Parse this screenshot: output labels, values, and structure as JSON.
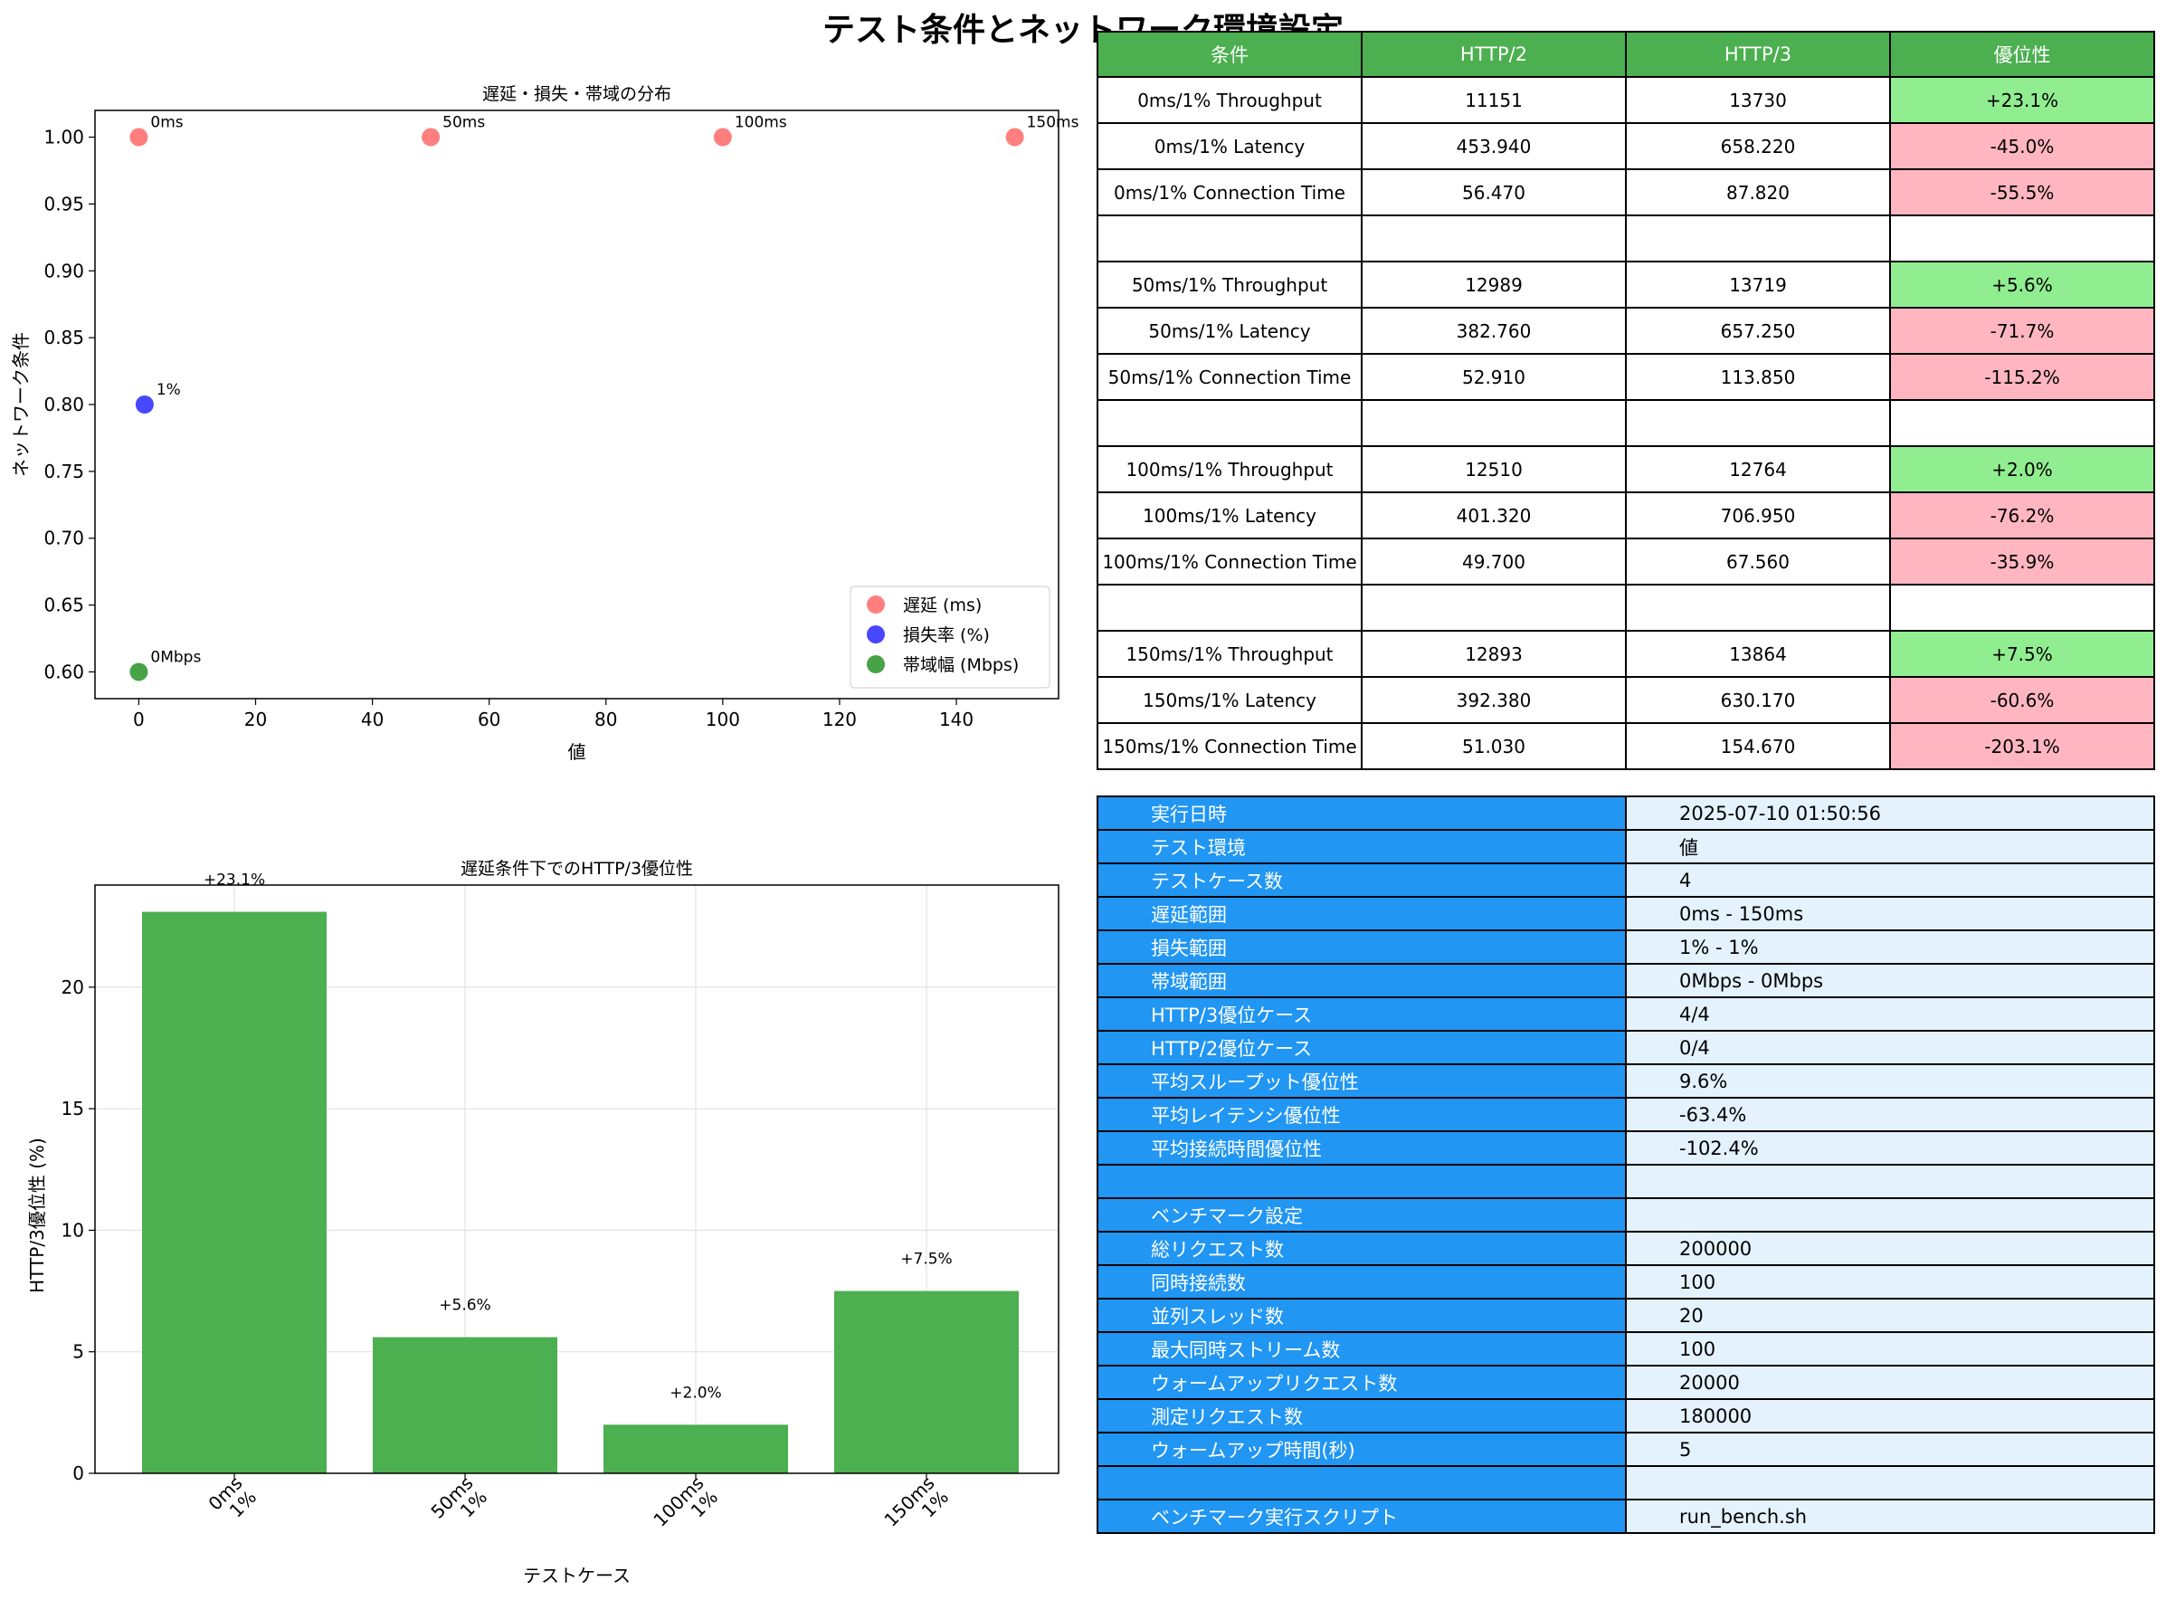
{
  "page_title": "テスト条件とネットワーク環境設定",
  "chart_data": [
    {
      "type": "scatter",
      "title": "遅延・損失・帯域の分布",
      "xlabel": "値",
      "ylabel": "ネットワーク条件",
      "xlim": [
        -7.5,
        157.5
      ],
      "ylim": [
        0.58,
        1.02
      ],
      "xticks": [
        0,
        20,
        40,
        60,
        80,
        100,
        120,
        140
      ],
      "yticks": [
        0.6,
        0.65,
        0.7,
        0.75,
        0.8,
        0.85,
        0.9,
        0.95,
        1.0
      ],
      "legend_position": "lower-right",
      "series": [
        {
          "name": "遅延 (ms)",
          "color": "#ff4d4d",
          "points": [
            {
              "x": 0,
              "y": 1.0,
              "label": "0ms"
            },
            {
              "x": 50,
              "y": 1.0,
              "label": "50ms"
            },
            {
              "x": 100,
              "y": 1.0,
              "label": "100ms"
            },
            {
              "x": 150,
              "y": 1.0,
              "label": "150ms"
            }
          ]
        },
        {
          "name": "損失率 (%)",
          "color": "#0000ff",
          "points": [
            {
              "x": 1,
              "y": 0.8,
              "label": "1%"
            }
          ]
        },
        {
          "name": "帯域幅 (Mbps)",
          "color": "#008000",
          "points": [
            {
              "x": 0,
              "y": 0.6,
              "label": "0Mbps"
            }
          ]
        }
      ]
    },
    {
      "type": "bar",
      "title": "遅延条件下でのHTTP/3優位性",
      "xlabel": "テストケース",
      "ylabel": "HTTP/3優位性 (%)",
      "ylim": [
        0,
        24.2
      ],
      "yticks": [
        0,
        5,
        10,
        15,
        20
      ],
      "grid": true,
      "color": "#4caf50",
      "categories": [
        [
          "0ms",
          "1%"
        ],
        [
          "50ms",
          "1%"
        ],
        [
          "100ms",
          "1%"
        ],
        [
          "150ms",
          "1%"
        ]
      ],
      "values": [
        23.1,
        5.6,
        2.0,
        7.5
      ],
      "labels": [
        "+23.1%",
        "+5.6%",
        "+2.0%",
        "+7.5%"
      ]
    }
  ],
  "results_table": {
    "headers": [
      "条件",
      "HTTP/2",
      "HTTP/3",
      "優位性"
    ],
    "rows": [
      [
        "0ms/1% Throughput",
        "11151",
        "13730",
        "+23.1%"
      ],
      [
        "0ms/1% Latency",
        "453.940",
        "658.220",
        "-45.0%"
      ],
      [
        "0ms/1% Connection Time",
        "56.470",
        "87.820",
        "-55.5%"
      ],
      [
        "",
        "",
        "",
        ""
      ],
      [
        "50ms/1% Throughput",
        "12989",
        "13719",
        "+5.6%"
      ],
      [
        "50ms/1% Latency",
        "382.760",
        "657.250",
        "-71.7%"
      ],
      [
        "50ms/1% Connection Time",
        "52.910",
        "113.850",
        "-115.2%"
      ],
      [
        "",
        "",
        "",
        ""
      ],
      [
        "100ms/1% Throughput",
        "12510",
        "12764",
        "+2.0%"
      ],
      [
        "100ms/1% Latency",
        "401.320",
        "706.950",
        "-76.2%"
      ],
      [
        "100ms/1% Connection Time",
        "49.700",
        "67.560",
        "-35.9%"
      ],
      [
        "",
        "",
        "",
        ""
      ],
      [
        "150ms/1% Throughput",
        "12893",
        "13864",
        "+7.5%"
      ],
      [
        "150ms/1% Latency",
        "392.380",
        "630.170",
        "-60.6%"
      ],
      [
        "150ms/1% Connection Time",
        "51.030",
        "154.670",
        "-203.1%"
      ]
    ],
    "colors": {
      "positive": "#90ee90",
      "negative": "#ffb6c1",
      "header": "#4caf50"
    }
  },
  "info_table": {
    "rows": [
      [
        "実行日時",
        "2025-07-10 01:50:56"
      ],
      [
        "テスト環境",
        "値"
      ],
      [
        "テストケース数",
        "4"
      ],
      [
        "遅延範囲",
        "0ms - 150ms"
      ],
      [
        "損失範囲",
        "1% - 1%"
      ],
      [
        "帯域範囲",
        "0Mbps - 0Mbps"
      ],
      [
        "HTTP/3優位ケース",
        "4/4"
      ],
      [
        "HTTP/2優位ケース",
        "0/4"
      ],
      [
        "平均スループット優位性",
        "9.6%"
      ],
      [
        "平均レイテンシ優位性",
        "-63.4%"
      ],
      [
        "平均接続時間優位性",
        "-102.4%"
      ],
      [
        "",
        ""
      ],
      [
        "ベンチマーク設定",
        ""
      ],
      [
        "総リクエスト数",
        "200000"
      ],
      [
        "同時接続数",
        "100"
      ],
      [
        "並列スレッド数",
        "20"
      ],
      [
        "最大同時ストリーム数",
        "100"
      ],
      [
        "ウォームアップリクエスト数",
        "20000"
      ],
      [
        "測定リクエスト数",
        "180000"
      ],
      [
        "ウォームアップ時間(秒)",
        "5"
      ],
      [
        "",
        ""
      ],
      [
        "ベンチマーク実行スクリプト",
        "run_bench.sh"
      ]
    ],
    "colors": {
      "key": "#2196f3",
      "value": "#e3f2fd"
    }
  }
}
